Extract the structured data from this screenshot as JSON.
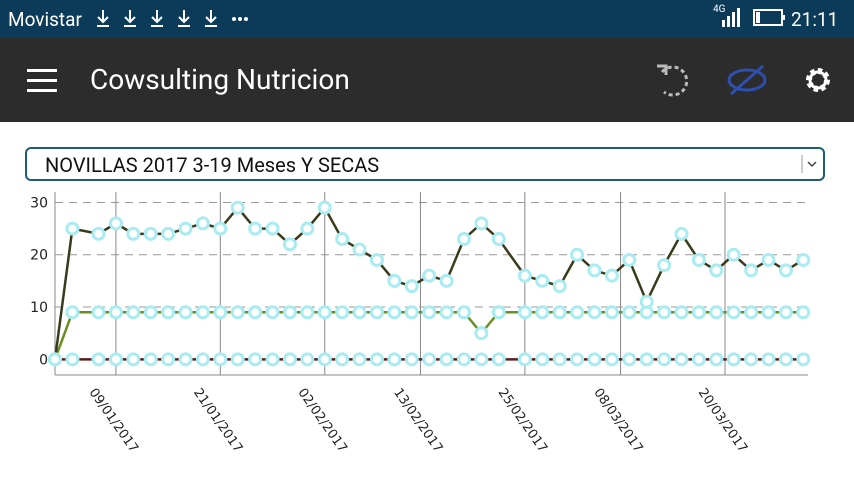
{
  "status_bar": {
    "carrier": "Movistar",
    "network": "4G",
    "time": "21:11"
  },
  "app_bar": {
    "title": "Cowsulting Nutricion"
  },
  "dropdown": {
    "selected": "NOVILLAS 2017 3-19 Meses Y SECAS"
  },
  "chart_data": {
    "type": "line",
    "x": [
      "02/01/2017",
      "04/01/2017",
      "07/01/2017",
      "09/01/2017",
      "11/01/2017",
      "13/01/2017",
      "15/01/2017",
      "17/01/2017",
      "19/01/2017",
      "21/01/2017",
      "23/01/2017",
      "25/01/2017",
      "27/01/2017",
      "29/01/2017",
      "31/01/2017",
      "02/02/2017",
      "04/02/2017",
      "06/02/2017",
      "08/02/2017",
      "10/02/2017",
      "12/02/2017",
      "14/02/2017",
      "16/02/2017",
      "18/02/2017",
      "20/02/2017",
      "22/02/2017",
      "25/02/2017",
      "27/02/2017",
      "01/03/2017",
      "03/03/2017",
      "05/03/2017",
      "07/03/2017",
      "09/03/2017",
      "11/03/2017",
      "13/03/2017",
      "15/03/2017",
      "17/03/2017",
      "19/03/2017",
      "21/03/2017",
      "23/03/2017",
      "25/03/2017",
      "27/03/2017",
      "29/03/2017"
    ],
    "series": [
      {
        "color": "#5a1c1c",
        "values": [
          0,
          0,
          0,
          0,
          0,
          0,
          0,
          0,
          0,
          0,
          0,
          0,
          0,
          0,
          0,
          0,
          0,
          0,
          0,
          0,
          0,
          0,
          0,
          0,
          0,
          0,
          0,
          0,
          0,
          0,
          0,
          0,
          0,
          0,
          0,
          0,
          0,
          0,
          0,
          0,
          0,
          0,
          0
        ]
      },
      {
        "color": "#6b8e23",
        "values": [
          0,
          9,
          9,
          9,
          9,
          9,
          9,
          9,
          9,
          9,
          9,
          9,
          9,
          9,
          9,
          9,
          9,
          9,
          9,
          9,
          9,
          9,
          9,
          9,
          5,
          9,
          9,
          9,
          9,
          9,
          9,
          9,
          9,
          9,
          9,
          9,
          9,
          9,
          9,
          9,
          9,
          9,
          9
        ]
      },
      {
        "color": "#3a3a1c",
        "values": [
          0,
          25,
          24,
          26,
          24,
          24,
          24,
          25,
          26,
          25,
          29,
          25,
          25,
          22,
          25,
          29,
          23,
          21,
          19,
          15,
          14,
          16,
          15,
          23,
          26,
          23,
          16,
          15,
          14,
          20,
          17,
          16,
          19,
          11,
          18,
          24,
          19,
          17,
          20,
          17,
          19,
          17,
          19
        ]
      }
    ],
    "marker_color": "#a8ecf2",
    "xlim": [
      "02/01/2017",
      "30/03/2017"
    ],
    "xticks": [
      "09/01/2017",
      "21/01/2017",
      "02/02/2017",
      "13/02/2017",
      "25/02/2017",
      "08/03/2017",
      "20/03/2017"
    ],
    "ylim": [
      -3,
      32
    ],
    "yticks": [
      0,
      10,
      20,
      30
    ],
    "grid": true
  }
}
